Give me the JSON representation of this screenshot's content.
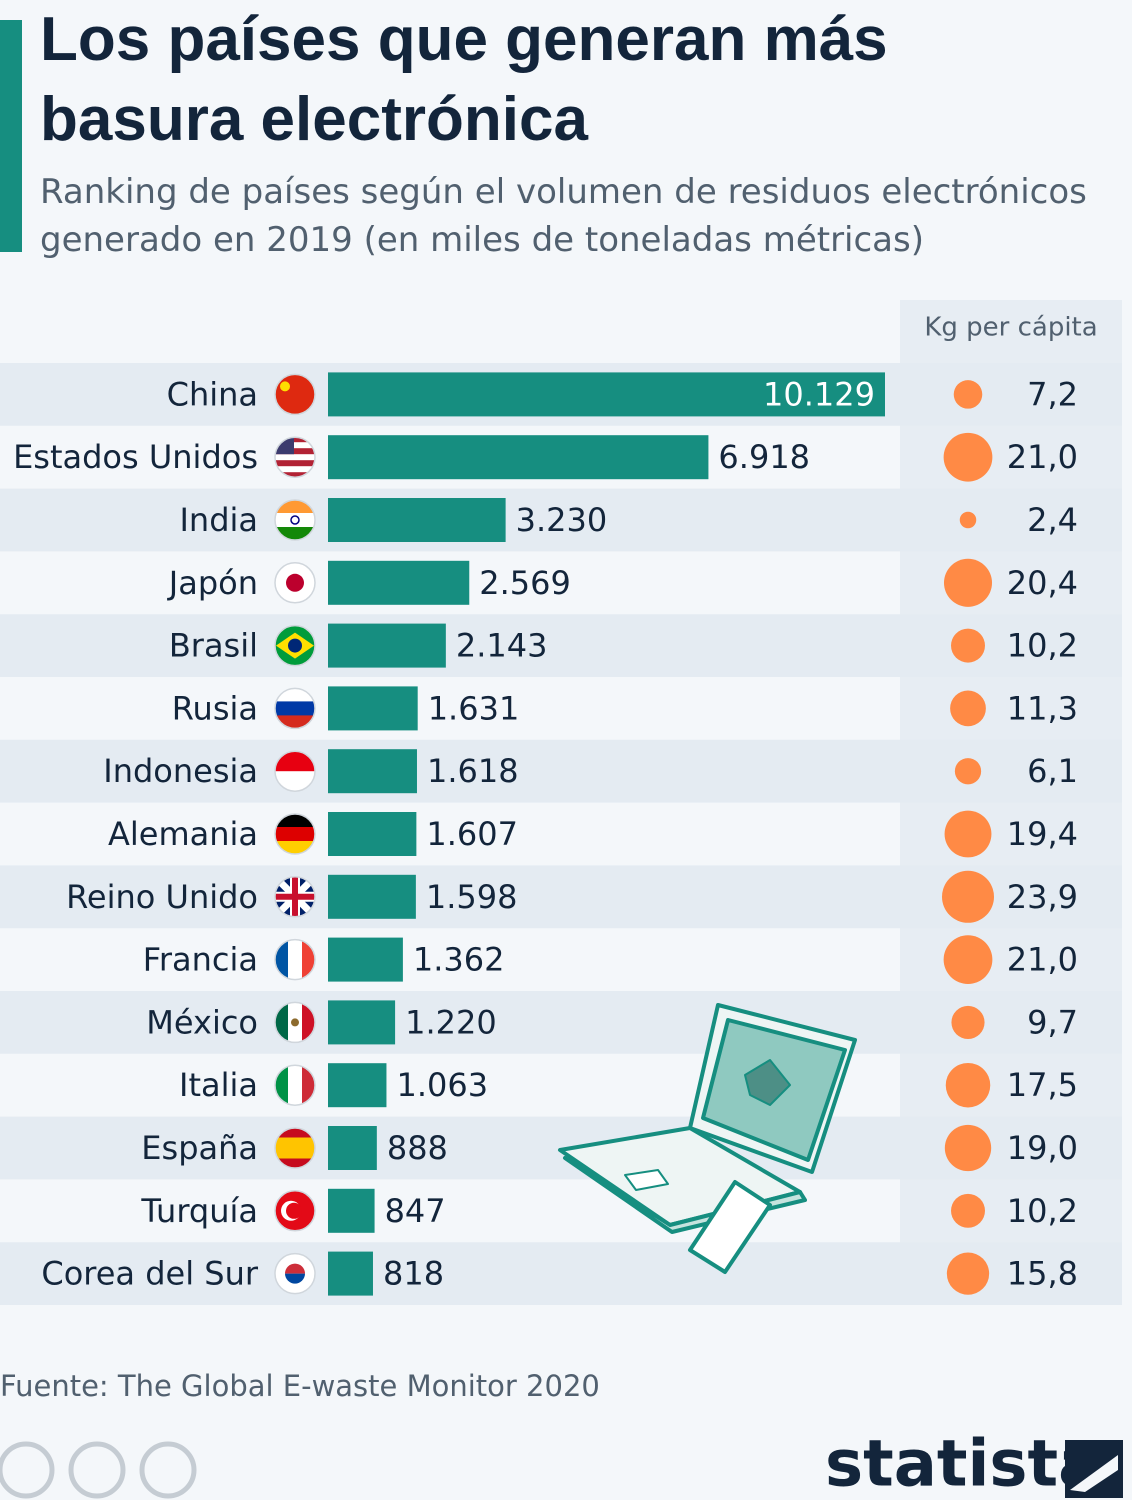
{
  "chart_data": {
    "type": "bar",
    "title": "Los países que generan más basura electrónica",
    "subtitle": "Ranking de países según el volumen de residuos electrónicos generado en 2019 (en miles de toneladas métricas)",
    "categories": [
      "China",
      "Estados Unidos",
      "India",
      "Japón",
      "Brasil",
      "Rusia",
      "Indonesia",
      "Alemania",
      "Reino Unido",
      "Francia",
      "México",
      "Italia",
      "España",
      "Turquía",
      "Corea del Sur"
    ],
    "values": [
      10129,
      6918,
      3230,
      2569,
      2143,
      1631,
      1618,
      1607,
      1598,
      1362,
      1220,
      1063,
      888,
      847,
      818
    ],
    "value_labels": [
      "10.129",
      "6.918",
      "3.230",
      "2.569",
      "2.143",
      "1.631",
      "1.618",
      "1.607",
      "1.598",
      "1.362",
      "1.220",
      "1.063",
      "888",
      "847",
      "818"
    ],
    "color": "#168e80",
    "per_capita": {
      "name": "Kg per cápita",
      "values": [
        7.2,
        21.0,
        2.4,
        20.4,
        10.2,
        11.3,
        6.1,
        19.4,
        23.9,
        21.0,
        9.7,
        17.5,
        19.0,
        10.2,
        15.8
      ],
      "value_labels": [
        "7,2",
        "21,0",
        "2,4",
        "20,4",
        "10,2",
        "11,3",
        "6,1",
        "19,4",
        "23,9",
        "21,0",
        "9,7",
        "17,5",
        "19,0",
        "10,2",
        "15,8"
      ],
      "color": "#ff8a45"
    },
    "source": "Fuente: The Global E-waste Monitor 2020",
    "brand": "statista"
  }
}
